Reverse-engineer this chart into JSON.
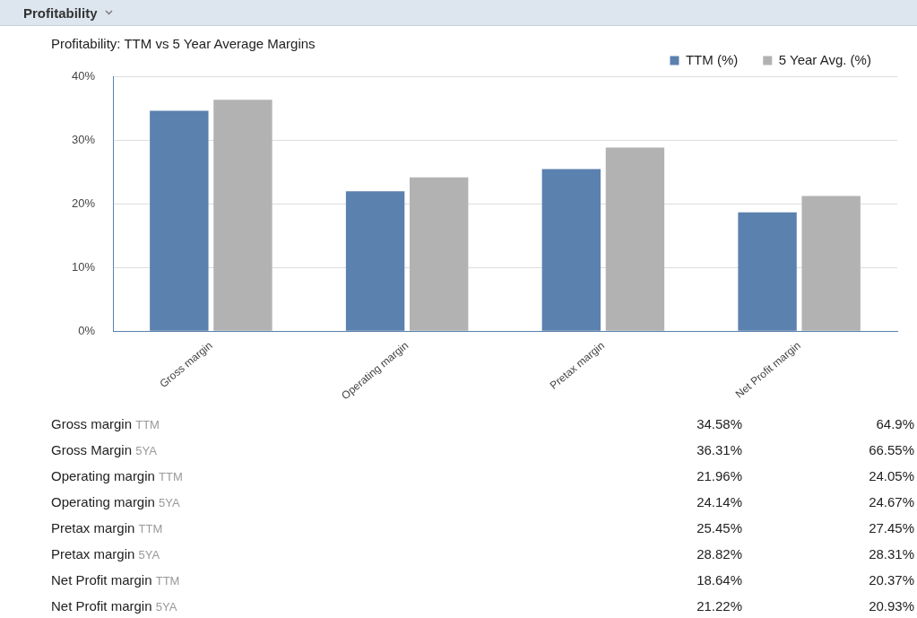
{
  "chart_data": {
    "type": "bar",
    "title": "Profitability",
    "subtitle": "Profitability: TTM vs 5 Year Average Margins",
    "categories": [
      "Gross margin",
      "Operating margin",
      "Pretax margin",
      "Net Profit margin"
    ],
    "series": [
      {
        "name": "TTM (%)",
        "color": "#5b81ae",
        "values": [
          34.58,
          21.96,
          25.45,
          18.64
        ]
      },
      {
        "name": "5 Year Avg. (%)",
        "color": "#b2b2b2",
        "values": [
          36.31,
          24.14,
          28.82,
          21.22
        ]
      }
    ],
    "ylim": [
      0,
      40
    ],
    "yticks": [
      {
        "value": 0,
        "label": "0%"
      },
      {
        "value": 10,
        "label": "10%"
      },
      {
        "value": 20,
        "label": "20%"
      },
      {
        "value": 30,
        "label": "30%"
      },
      {
        "value": 40,
        "label": "40%"
      }
    ],
    "grid": "y",
    "legend": "top right",
    "annotations": [
      "Gross margin TTM",
      "34.58%",
      "64.9%",
      "Gross Margin 5YA",
      "36.31%",
      "66.55%",
      "Operating margin TTM",
      "21.96%",
      "24.05%",
      "Operating margin 5YA",
      "24.14%",
      "24.67%",
      "Pretax margin TTM",
      "25.45%",
      "27.45%",
      "Pretax margin 5YA",
      "28.82%",
      "28.31%",
      "Net Profit margin TTM",
      "18.64%",
      "20.37%",
      "Net Profit margin 5YA",
      "21.22%",
      "20.93%"
    ]
  }
}
